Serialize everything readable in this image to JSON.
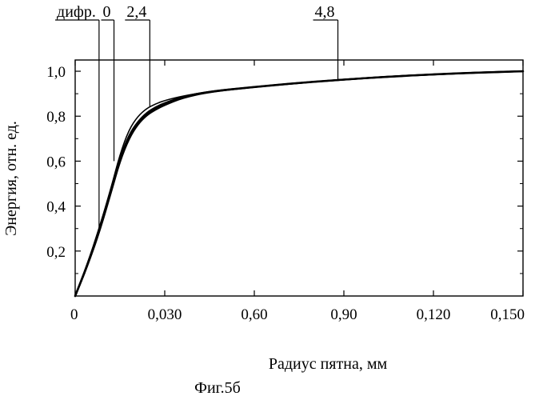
{
  "chart_data": {
    "type": "line",
    "xlabel": "Радиус пятна, мм",
    "ylabel": "Энергия, отн. ед.",
    "caption": "Фиг.5б",
    "x_ticks": [
      {
        "value": 0,
        "label": "0"
      },
      {
        "value": 0.03,
        "label": "0,030"
      },
      {
        "value": 0.06,
        "label": "0,60"
      },
      {
        "value": 0.09,
        "label": "0,90"
      },
      {
        "value": 0.12,
        "label": "0,120"
      },
      {
        "value": 0.15,
        "label": "0,150"
      }
    ],
    "y_ticks": [
      {
        "value": 0.2,
        "label": "0,2"
      },
      {
        "value": 0.4,
        "label": "0,4"
      },
      {
        "value": 0.6,
        "label": "0,6"
      },
      {
        "value": 0.8,
        "label": "0,8"
      },
      {
        "value": 1.0,
        "label": "1,0"
      }
    ],
    "xlim": [
      0,
      0.15
    ],
    "ylim": [
      0,
      1.05
    ],
    "grid": false,
    "series": [
      {
        "name": "дифр.",
        "label_x": 0.008,
        "leader_anchor": [
          0.008,
          0.3
        ],
        "stroke": 1.6,
        "x": [
          0,
          0.004,
          0.008,
          0.012,
          0.015,
          0.018,
          0.021,
          0.024,
          0.027,
          0.03,
          0.036,
          0.045,
          0.06,
          0.075,
          0.09,
          0.105,
          0.12,
          0.135,
          0.15
        ],
        "y": [
          0,
          0.14,
          0.3,
          0.48,
          0.63,
          0.74,
          0.8,
          0.835,
          0.855,
          0.87,
          0.89,
          0.91,
          0.93,
          0.948,
          0.963,
          0.976,
          0.986,
          0.994,
          1.0
        ]
      },
      {
        "name": "0",
        "label_x": 0.013,
        "leader_anchor": [
          0.013,
          0.6
        ],
        "stroke": 2.2,
        "x": [
          0,
          0.004,
          0.008,
          0.012,
          0.015,
          0.018,
          0.021,
          0.024,
          0.027,
          0.03,
          0.036,
          0.045,
          0.06,
          0.075,
          0.09,
          0.105,
          0.12,
          0.135,
          0.15
        ],
        "y": [
          0,
          0.13,
          0.29,
          0.47,
          0.61,
          0.71,
          0.77,
          0.81,
          0.835,
          0.855,
          0.885,
          0.91,
          0.93,
          0.948,
          0.963,
          0.976,
          0.986,
          0.994,
          1.0
        ]
      },
      {
        "name": "2,4",
        "label_x": 0.025,
        "leader_anchor": [
          0.025,
          0.84
        ],
        "stroke": 2.2,
        "x": [
          0,
          0.004,
          0.008,
          0.012,
          0.015,
          0.018,
          0.021,
          0.024,
          0.027,
          0.03,
          0.036,
          0.045,
          0.06,
          0.075,
          0.09,
          0.105,
          0.12,
          0.135,
          0.15
        ],
        "y": [
          0,
          0.13,
          0.28,
          0.46,
          0.6,
          0.7,
          0.765,
          0.805,
          0.83,
          0.85,
          0.882,
          0.908,
          0.93,
          0.948,
          0.963,
          0.976,
          0.986,
          0.994,
          1.0
        ]
      },
      {
        "name": "4,8",
        "label_x": 0.088,
        "leader_anchor": [
          0.088,
          0.962
        ],
        "stroke": 2.6,
        "x": [
          0,
          0.004,
          0.008,
          0.012,
          0.015,
          0.018,
          0.021,
          0.024,
          0.027,
          0.03,
          0.036,
          0.045,
          0.06,
          0.075,
          0.09,
          0.105,
          0.12,
          0.135,
          0.15
        ],
        "y": [
          0,
          0.135,
          0.29,
          0.47,
          0.61,
          0.715,
          0.775,
          0.815,
          0.84,
          0.858,
          0.886,
          0.91,
          0.93,
          0.948,
          0.963,
          0.976,
          0.986,
          0.994,
          1.0
        ]
      }
    ]
  }
}
